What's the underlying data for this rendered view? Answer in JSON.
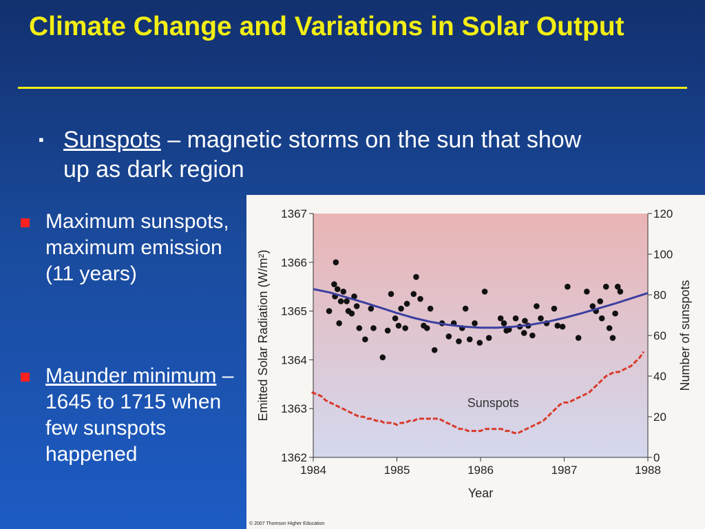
{
  "slide": {
    "title": "Climate Change and Variations in Solar Output",
    "bullet": {
      "term": "Sunspots",
      "text": " – magnetic storms on the sun that show up as dark region"
    },
    "sub_bullets": [
      {
        "text": "Maximum sunspots, maximum emission (11 years)"
      },
      {
        "term": "Maunder minimum",
        "text": " – 1645 to 1715 when few sunspots happened"
      }
    ],
    "credit": "© 2007 Thomson Higher Education",
    "colors": {
      "title": "#f2ee14",
      "bullet_marker": "#ff2020",
      "radiation_fit": "#3b3fa0",
      "sunspots_series": "#d83a2a",
      "plot_top": "#eab4b4",
      "plot_bottom": "#d4d8ee"
    }
  },
  "chart_data": {
    "type": "scatter",
    "xlabel": "Year",
    "ylabel": "Emitted Solar Radiation (W/m²)",
    "y2label": "Number of sunspots",
    "xlim": [
      1984,
      1988
    ],
    "ylim": [
      1362,
      1367
    ],
    "y2lim": [
      0,
      120
    ],
    "x_ticks": [
      "1984",
      "1985",
      "1986",
      "1987",
      "1988"
    ],
    "y_ticks": [
      "1362",
      "1363",
      "1364",
      "1365",
      "1366",
      "1367"
    ],
    "y2_ticks": [
      "0",
      "20",
      "40",
      "60",
      "80",
      "100",
      "120"
    ],
    "annotation": "Sunspots",
    "series": [
      {
        "type": "scatter",
        "axis": "left",
        "x": [
          1984.19,
          1984.25,
          1984.26,
          1984.27,
          1984.29,
          1984.31,
          1984.33,
          1984.36,
          1984.4,
          1984.42,
          1984.46,
          1984.49,
          1984.52,
          1984.55,
          1984.62,
          1984.69,
          1984.72,
          1984.83,
          1984.89,
          1984.93,
          1984.98,
          1985.02,
          1985.05,
          1985.1,
          1985.12,
          1985.2,
          1985.23,
          1985.28,
          1985.32,
          1985.36,
          1985.4,
          1985.45,
          1985.54,
          1985.62,
          1985.68,
          1985.74,
          1985.78,
          1985.82,
          1985.87,
          1985.93,
          1985.99,
          1986.05,
          1986.1,
          1986.24,
          1986.28,
          1986.31,
          1986.34,
          1986.42,
          1986.47,
          1986.52,
          1986.53,
          1986.57,
          1986.62,
          1986.67,
          1986.72,
          1986.79,
          1986.88,
          1986.92,
          1986.98,
          1987.04,
          1987.17,
          1987.27,
          1987.34,
          1987.38,
          1987.43,
          1987.45,
          1987.5,
          1987.54,
          1987.58,
          1987.61,
          1987.64,
          1987.67
        ],
        "y": [
          1365.0,
          1365.55,
          1365.3,
          1366.0,
          1365.45,
          1364.75,
          1365.2,
          1365.4,
          1365.2,
          1365.0,
          1364.95,
          1365.3,
          1365.1,
          1364.65,
          1364.42,
          1365.05,
          1364.65,
          1364.05,
          1364.6,
          1365.35,
          1364.85,
          1364.7,
          1365.05,
          1364.65,
          1365.15,
          1365.35,
          1365.7,
          1365.25,
          1364.7,
          1364.65,
          1365.05,
          1364.2,
          1364.75,
          1364.48,
          1364.75,
          1364.38,
          1364.65,
          1365.05,
          1364.42,
          1364.75,
          1364.35,
          1365.4,
          1364.45,
          1364.85,
          1364.75,
          1364.6,
          1364.62,
          1364.85,
          1364.68,
          1364.55,
          1364.8,
          1364.7,
          1364.5,
          1365.1,
          1364.85,
          1364.75,
          1365.05,
          1364.7,
          1364.68,
          1365.5,
          1364.45,
          1365.4,
          1365.1,
          1365.0,
          1365.2,
          1364.85,
          1365.5,
          1364.65,
          1364.45,
          1364.95,
          1365.5,
          1365.4
        ]
      },
      {
        "type": "line",
        "axis": "left",
        "x": [
          1984.0,
          1984.2,
          1984.4,
          1984.6,
          1984.8,
          1985.0,
          1985.2,
          1985.4,
          1985.6,
          1985.8,
          1986.0,
          1986.2,
          1986.4,
          1986.6,
          1986.8,
          1987.0,
          1987.2,
          1987.4,
          1987.6,
          1987.8,
          1988.0
        ],
        "y": [
          1365.45,
          1365.38,
          1365.28,
          1365.18,
          1365.07,
          1364.96,
          1364.86,
          1364.78,
          1364.72,
          1364.68,
          1364.66,
          1364.66,
          1364.68,
          1364.72,
          1364.78,
          1364.86,
          1364.95,
          1365.05,
          1365.15,
          1365.26,
          1365.37
        ]
      },
      {
        "type": "line",
        "axis": "right",
        "x": [
          1983.98,
          1984.05,
          1984.1,
          1984.15,
          1984.2,
          1984.25,
          1984.3,
          1984.35,
          1984.4,
          1984.45,
          1984.5,
          1984.55,
          1984.6,
          1984.65,
          1984.7,
          1984.75,
          1984.8,
          1984.85,
          1984.9,
          1984.95,
          1985.0,
          1985.05,
          1985.1,
          1985.15,
          1985.2,
          1985.25,
          1985.3,
          1985.35,
          1985.4,
          1985.45,
          1985.5,
          1985.55,
          1985.6,
          1985.65,
          1985.7,
          1985.75,
          1985.8,
          1985.85,
          1985.9,
          1985.95,
          1986.0,
          1986.05,
          1986.1,
          1986.15,
          1986.2,
          1986.25,
          1986.3,
          1986.35,
          1986.4,
          1986.45,
          1986.5,
          1986.55,
          1986.6,
          1986.65,
          1986.7,
          1986.75,
          1986.8,
          1986.85,
          1986.9,
          1986.95,
          1987.0,
          1987.05,
          1987.1,
          1987.15,
          1987.2,
          1987.25,
          1987.3,
          1987.35,
          1987.4,
          1987.45,
          1987.5,
          1987.55,
          1987.6,
          1987.65,
          1987.7,
          1987.75,
          1987.8,
          1987.85,
          1987.9,
          1987.95
        ],
        "y": [
          32,
          31,
          30,
          28,
          27,
          26,
          25,
          24,
          23,
          22,
          21,
          20,
          20,
          19,
          19,
          18,
          18,
          17,
          17,
          17,
          16,
          17,
          17,
          18,
          18,
          19,
          19,
          19,
          19,
          19,
          19,
          18,
          17,
          16,
          15,
          14,
          14,
          13,
          13,
          13,
          13,
          14,
          14,
          14,
          14,
          14,
          13,
          13,
          12,
          12,
          13,
          14,
          15,
          16,
          17,
          18,
          20,
          22,
          24,
          26,
          27,
          27,
          28,
          29,
          30,
          31,
          32,
          34,
          36,
          38,
          40,
          41,
          42,
          42,
          43,
          44,
          45,
          47,
          49,
          52
        ]
      }
    ]
  }
}
